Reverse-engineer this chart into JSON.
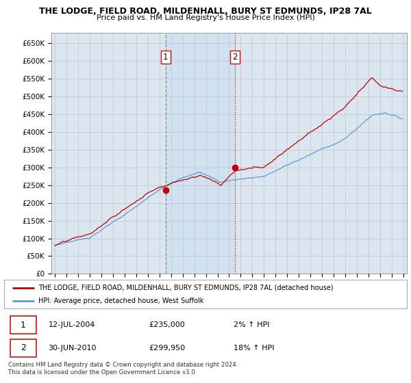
{
  "title1": "THE LODGE, FIELD ROAD, MILDENHALL, BURY ST EDMUNDS, IP28 7AL",
  "title2": "Price paid vs. HM Land Registry's House Price Index (HPI)",
  "legend_line1": "THE LODGE, FIELD ROAD, MILDENHALL, BURY ST EDMUNDS, IP28 7AL (detached house)",
  "legend_line2": "HPI: Average price, detached house, West Suffolk",
  "table_row1": [
    "1",
    "12-JUL-2004",
    "£235,000",
    "2% ↑ HPI"
  ],
  "table_row2": [
    "2",
    "30-JUN-2010",
    "£299,950",
    "18% ↑ HPI"
  ],
  "footnote": "Contains HM Land Registry data © Crown copyright and database right 2024.\nThis data is licensed under the Open Government Licence v3.0.",
  "ylim": [
    0,
    680000
  ],
  "yticks": [
    0,
    50000,
    100000,
    150000,
    200000,
    250000,
    300000,
    350000,
    400000,
    450000,
    500000,
    550000,
    600000,
    650000
  ],
  "ytick_labels": [
    "£0",
    "£50K",
    "£100K",
    "£150K",
    "£200K",
    "£250K",
    "£300K",
    "£350K",
    "£400K",
    "£450K",
    "£500K",
    "£550K",
    "£600K",
    "£650K"
  ],
  "hpi_color": "#5b9bd5",
  "price_color": "#c00000",
  "grid_color": "#c8c8c8",
  "bg_color": "#dce6f1",
  "shade_color": "#cfe2f3",
  "sale1_year": 2004.54,
  "sale1_price": 235000,
  "sale2_year": 2010.5,
  "sale2_price": 299950,
  "vline1_color": "#888888",
  "vline1_style": "--",
  "vline2_color": "#cc1111",
  "vline2_style": ":",
  "xlabel_start": 1995,
  "xlabel_end": 2025
}
